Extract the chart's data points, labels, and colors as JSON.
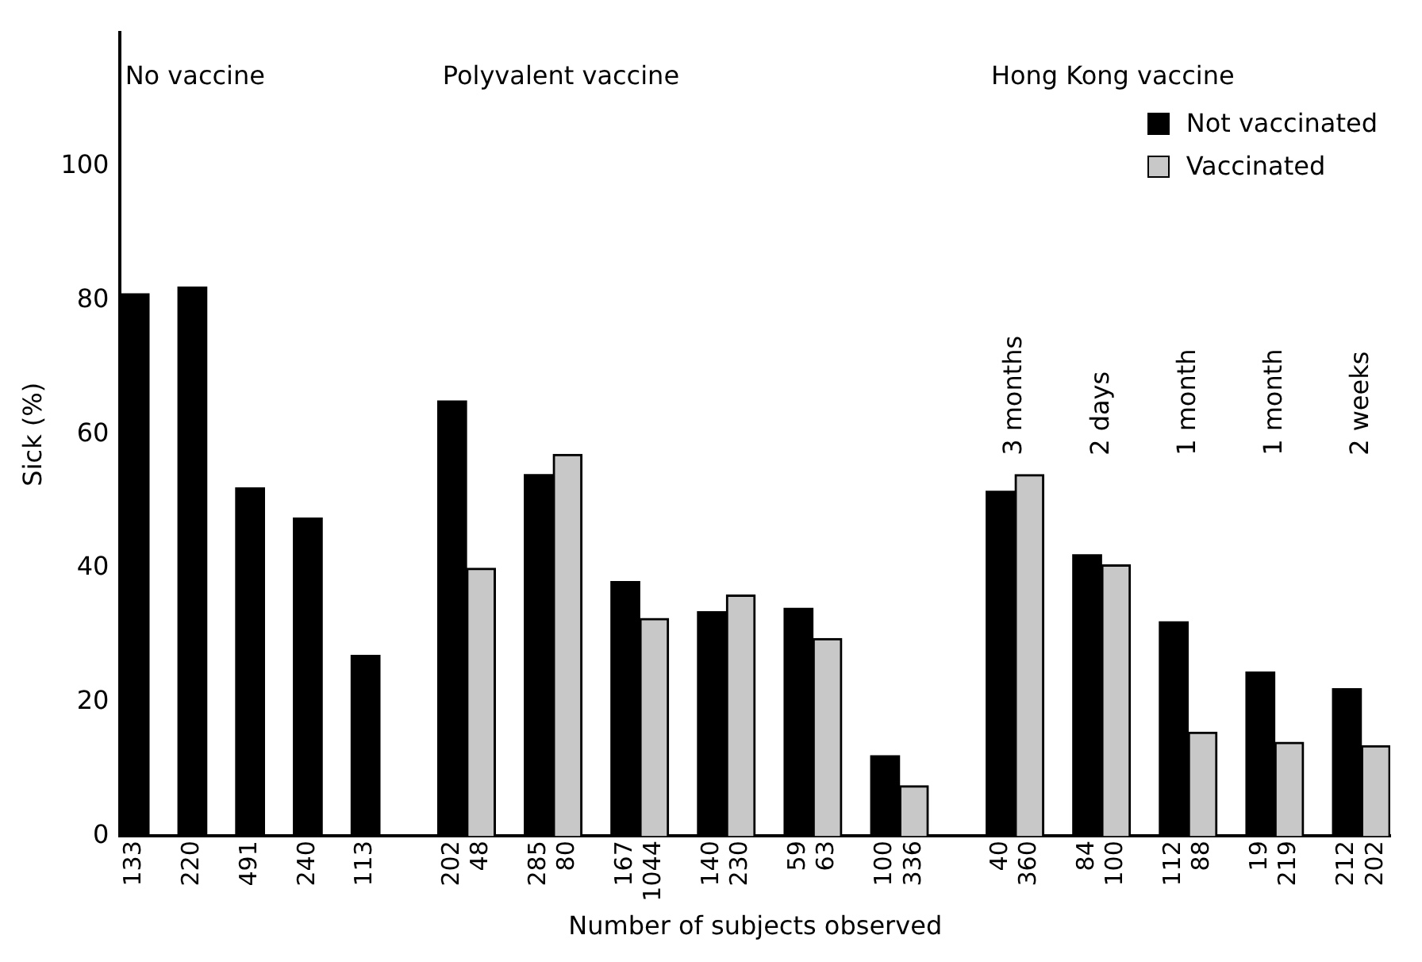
{
  "chart_data": {
    "type": "bar",
    "ylabel": "Sick (%)",
    "xlabel": "Number of subjects observed",
    "categories": [
      "133",
      null,
      "220",
      null,
      "491",
      null,
      "240",
      null,
      "113",
      null,
      null,
      "202",
      "48",
      null,
      "285",
      "80",
      null,
      "167",
      "1044",
      null,
      "140",
      "230",
      null,
      "59",
      "63",
      null,
      "100",
      "336",
      null,
      null,
      "40",
      "360",
      null,
      "84",
      "100",
      null,
      "112",
      "88",
      null,
      "19",
      "219",
      null,
      "212",
      "202"
    ],
    "series": [
      {
        "name": "Not vaccinated",
        "color": "#000000",
        "values": [
          81,
          null,
          82,
          null,
          52,
          null,
          47.5,
          null,
          27,
          null,
          null,
          65,
          null,
          null,
          54,
          null,
          null,
          38,
          null,
          null,
          33.5,
          null,
          null,
          34,
          null,
          null,
          12,
          null,
          null,
          null,
          51.5,
          null,
          null,
          42,
          null,
          null,
          32,
          null,
          null,
          24.5,
          null,
          null,
          22,
          null
        ]
      },
      {
        "name": "Vaccinated",
        "color": "#c8c8c8",
        "values": [
          null,
          null,
          null,
          null,
          null,
          null,
          null,
          null,
          null,
          null,
          null,
          null,
          40,
          null,
          null,
          57,
          null,
          null,
          32.5,
          null,
          null,
          36,
          null,
          null,
          29.5,
          null,
          null,
          7.5,
          null,
          null,
          null,
          54,
          null,
          null,
          40.5,
          null,
          null,
          15.5,
          null,
          null,
          14,
          null,
          null,
          13.5
        ]
      }
    ],
    "ylim": [
      0,
      120
    ],
    "yticks": [
      0,
      20,
      40,
      60,
      80,
      100
    ],
    "grid": false,
    "legend": "top right",
    "annotations": [
      "No vaccine",
      "Polyvalent vaccine",
      "Hong Kong vaccine",
      "3 months",
      "2 days",
      "1 month",
      "1 month",
      "2 weeks"
    ]
  }
}
